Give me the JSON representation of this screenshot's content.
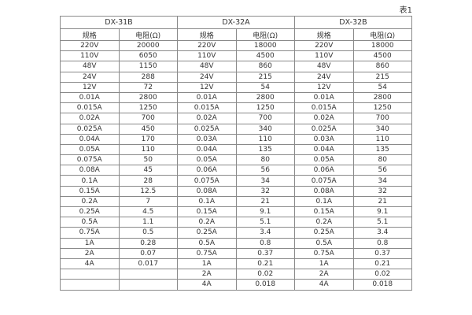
{
  "caption": "表1",
  "table": {
    "groups": [
      {
        "label": "DX-31B",
        "spec_header": "规格",
        "resistance_header": "电阻(Ω)"
      },
      {
        "label": "DX-32A",
        "spec_header": "规格",
        "resistance_header": "电阻(Ω)"
      },
      {
        "label": "DX-32B",
        "spec_header": "规格",
        "resistance_header": "电阻(Ω)"
      }
    ],
    "rows": [
      [
        "220V",
        "20000",
        "220V",
        "18000",
        "220V",
        "18000"
      ],
      [
        "110V",
        "6050",
        "110V",
        "4500",
        "110V",
        "4500"
      ],
      [
        "48V",
        "1150",
        "48V",
        "860",
        "48V",
        "860"
      ],
      [
        "24V",
        "288",
        "24V",
        "215",
        "24V",
        "215"
      ],
      [
        "12V",
        "72",
        "12V",
        "54",
        "12V",
        "54"
      ],
      [
        "0.01A",
        "2800",
        "0.01A",
        "2800",
        "0.01A",
        "2800"
      ],
      [
        "0.015A",
        "1250",
        "0.015A",
        "1250",
        "0.015A",
        "1250"
      ],
      [
        "0.02A",
        "700",
        "0.02A",
        "700",
        "0.02A",
        "700"
      ],
      [
        "0.025A",
        "450",
        "0.025A",
        "340",
        "0.025A",
        "340"
      ],
      [
        "0.04A",
        "170",
        "0.03A",
        "110",
        "0.03A",
        "110"
      ],
      [
        "0.05A",
        "110",
        "0.04A",
        "135",
        "0.04A",
        "135"
      ],
      [
        "0.075A",
        "50",
        "0.05A",
        "80",
        "0.05A",
        "80"
      ],
      [
        "0.08A",
        "45",
        "0.06A",
        "56",
        "0.06A",
        "56"
      ],
      [
        "0.1A",
        "28",
        "0.075A",
        "34",
        "0.075A",
        "34"
      ],
      [
        "0.15A",
        "12.5",
        "0.08A",
        "32",
        "0.08A",
        "32"
      ],
      [
        "0.2A",
        "7",
        "0.1A",
        "21",
        "0.1A",
        "21"
      ],
      [
        "0.25A",
        "4.5",
        "0.15A",
        "9.1",
        "0.15A",
        "9.1"
      ],
      [
        "0.5A",
        "1.1",
        "0.2A",
        "5.1",
        "0.2A",
        "5.1"
      ],
      [
        "0.75A",
        "0.5",
        "0.25A",
        "3.4",
        "0.25A",
        "3.4"
      ],
      [
        "1A",
        "0.28",
        "0.5A",
        "0.8",
        "0.5A",
        "0.8"
      ],
      [
        "2A",
        "0.07",
        "0.75A",
        "0.37",
        "0.75A",
        "0.37"
      ],
      [
        "4A",
        "0.017",
        "1A",
        "0.21",
        "1A",
        "0.21"
      ],
      [
        "",
        "",
        "2A",
        "0.02",
        "2A",
        "0.02"
      ],
      [
        "",
        "",
        "4A",
        "0.018",
        "4A",
        "0.018"
      ]
    ]
  },
  "colors": {
    "border": "#8a8a8a",
    "text": "#333333",
    "background": "#ffffff"
  }
}
